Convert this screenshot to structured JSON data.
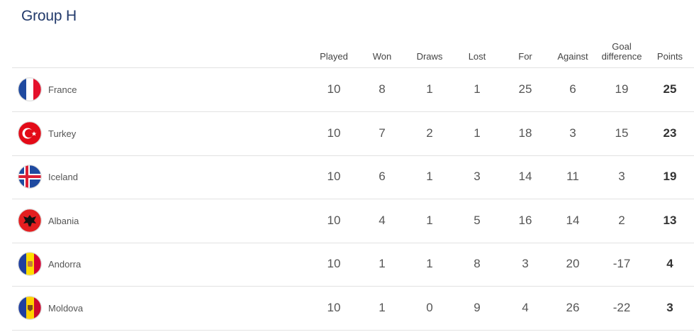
{
  "group_title": "Group H",
  "columns": [
    "Played",
    "Won",
    "Draws",
    "Lost",
    "For",
    "Against",
    "Goal\ndifference",
    "Points"
  ],
  "rows": [
    {
      "team": "France",
      "flag": "france-flag",
      "values": [
        "10",
        "8",
        "1",
        "1",
        "25",
        "6",
        "19",
        "25"
      ]
    },
    {
      "team": "Turkey",
      "flag": "turkey-flag",
      "values": [
        "10",
        "7",
        "2",
        "1",
        "18",
        "3",
        "15",
        "23"
      ]
    },
    {
      "team": "Iceland",
      "flag": "iceland-flag",
      "values": [
        "10",
        "6",
        "1",
        "3",
        "14",
        "11",
        "3",
        "19"
      ]
    },
    {
      "team": "Albania",
      "flag": "albania-flag",
      "values": [
        "10",
        "4",
        "1",
        "5",
        "16",
        "14",
        "2",
        "13"
      ]
    },
    {
      "team": "Andorra",
      "flag": "andorra-flag",
      "values": [
        "10",
        "1",
        "1",
        "8",
        "3",
        "20",
        "-17",
        "4"
      ]
    },
    {
      "team": "Moldova",
      "flag": "moldova-flag",
      "values": [
        "10",
        "1",
        "0",
        "9",
        "4",
        "26",
        "-22",
        "3"
      ]
    }
  ],
  "colors": {
    "title": "#223a6b",
    "divider": "#e2e2e2"
  }
}
